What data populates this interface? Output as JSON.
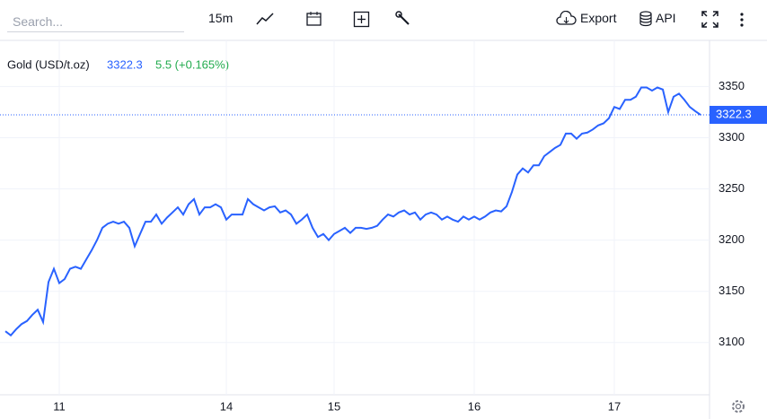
{
  "toolbar": {
    "search_placeholder": "Search...",
    "interval": "15m",
    "export": "Export",
    "api": "API"
  },
  "chart_data": {
    "type": "line",
    "change": "5.5 (+0.165%)",
    "categories": [
      null,
      null,
      null,
      null,
      null,
      null,
      null,
      null,
      null,
      null,
      "11",
      null,
      null,
      null,
      null,
      null,
      null,
      null,
      null,
      null,
      null,
      null,
      null,
      null,
      null,
      null,
      null,
      null,
      null,
      null,
      null,
      null,
      null,
      null,
      null,
      null,
      null,
      null,
      null,
      null,
      null,
      "14",
      null,
      null,
      null,
      null,
      null,
      null,
      null,
      null,
      null,
      null,
      null,
      null,
      null,
      null,
      null,
      null,
      null,
      null,
      null,
      "15",
      null,
      null,
      null,
      null,
      null,
      null,
      null,
      null,
      null,
      null,
      null,
      null,
      null,
      null,
      null,
      null,
      null,
      null,
      null,
      null,
      null,
      null,
      null,
      null,
      null,
      "16",
      null,
      null,
      null,
      null,
      null,
      null,
      null,
      null,
      null,
      null,
      null,
      null,
      null,
      null,
      null,
      null,
      null,
      null,
      null,
      null,
      null,
      null,
      null,
      null,
      null,
      "17",
      null,
      null,
      null,
      null,
      null,
      null,
      null,
      null,
      null,
      null,
      null,
      null,
      null,
      null,
      null,
      null
    ],
    "series": [
      {
        "name": "Gold (USD/t.oz)",
        "color": "#2962ff",
        "values": [
          3111,
          3107,
          3113,
          3118,
          3121,
          3127,
          3132,
          3120,
          3159,
          3172,
          3158,
          3162,
          3172,
          3174,
          3172,
          3181,
          3190,
          3200,
          3212,
          3216,
          3218,
          3216,
          3218,
          3212,
          3194,
          3206,
          3218,
          3218,
          3225,
          3216,
          3222,
          3227,
          3232,
          3225,
          3235,
          3240,
          3225,
          3232,
          3232,
          3235,
          3232,
          3220,
          3225,
          3225,
          3225,
          3240,
          3235,
          3232,
          3229,
          3232,
          3233,
          3227,
          3229,
          3225,
          3216,
          3220,
          3225,
          3212,
          3203,
          3206,
          3200,
          3206,
          3209,
          3212,
          3207,
          3212,
          3212,
          3211,
          3212,
          3214,
          3220,
          3225,
          3223,
          3227,
          3229,
          3225,
          3227,
          3220,
          3225,
          3227,
          3225,
          3220,
          3223,
          3220,
          3218,
          3223,
          3220,
          3223,
          3220,
          3223,
          3227,
          3229,
          3228,
          3233,
          3247,
          3264,
          3270,
          3266,
          3273,
          3273,
          3282,
          3286,
          3290,
          3293,
          3304,
          3304,
          3299,
          3304,
          3305,
          3308,
          3312,
          3314,
          3319,
          3330,
          3328,
          3337,
          3337,
          3340,
          3349,
          3349,
          3346,
          3349,
          3347,
          3325,
          3340,
          3343,
          3337,
          3330,
          3326,
          3322.3
        ]
      }
    ],
    "ylim": [
      3049,
      3395
    ],
    "yticks": [
      3100,
      3150,
      3200,
      3250,
      3300,
      3350
    ],
    "grid": true
  }
}
